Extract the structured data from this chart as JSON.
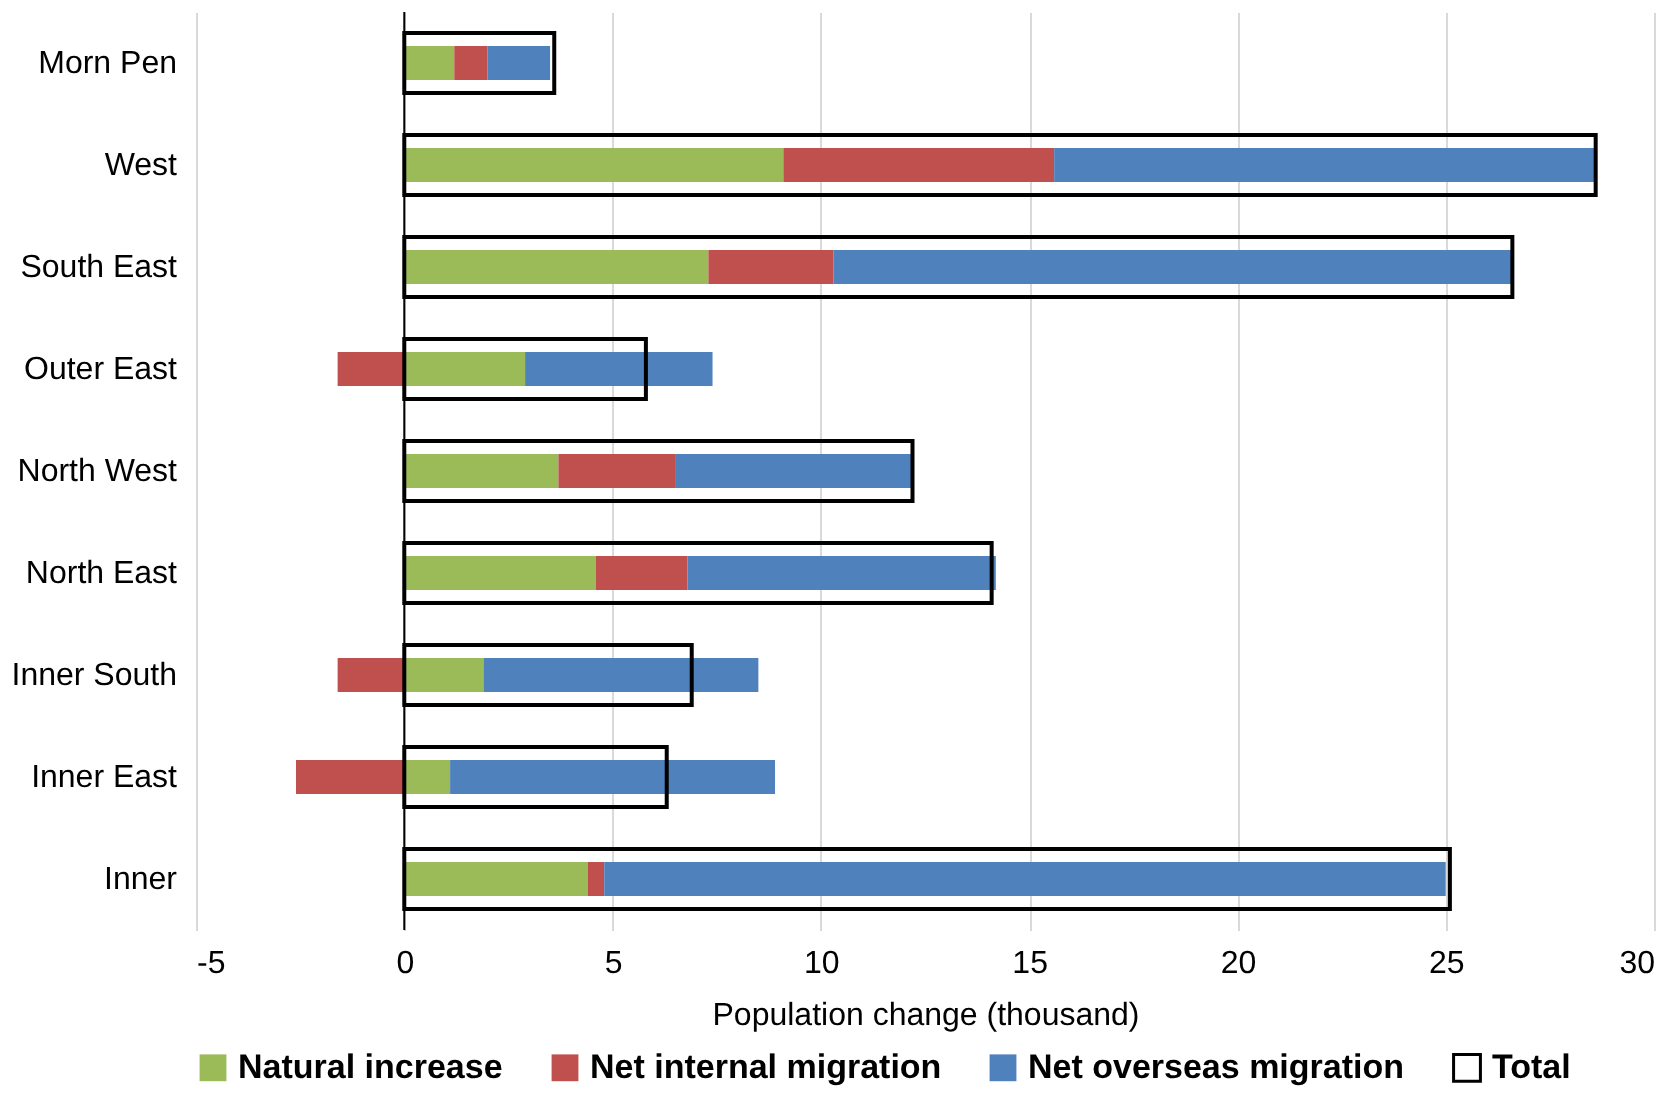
{
  "chart_data": {
    "type": "bar",
    "orientation": "horizontal",
    "xlabel": "Population change (thousand)",
    "categories": [
      "Morn Pen",
      "West",
      "South East",
      "Outer East",
      "North West",
      "North East",
      "Inner South",
      "Inner East",
      "Inner"
    ],
    "series": [
      {
        "name": "Natural increase",
        "color": "#9bbb59",
        "base": [
          0,
          0,
          0,
          0,
          0,
          0,
          0,
          0,
          0
        ],
        "values": [
          1.2,
          9.1,
          7.3,
          2.9,
          3.7,
          4.6,
          1.9,
          1.1,
          4.4
        ]
      },
      {
        "name": "Net internal migration",
        "color": "#c0504d",
        "base": [
          1.2,
          9.1,
          7.3,
          0,
          3.7,
          4.6,
          0,
          0,
          4.4
        ],
        "values": [
          0.8,
          6.5,
          3.0,
          -1.6,
          2.8,
          2.2,
          -1.6,
          -2.6,
          0.4
        ]
      },
      {
        "name": "Net overseas migration",
        "color": "#4f81bd",
        "base": [
          2.0,
          15.6,
          10.3,
          2.9,
          6.5,
          6.8,
          1.9,
          1.1,
          4.8
        ],
        "values": [
          1.5,
          13.0,
          16.3,
          4.5,
          5.7,
          7.4,
          6.6,
          7.8,
          20.2
        ]
      },
      {
        "name": "Total",
        "color": "#000000",
        "base": [
          0,
          0,
          0,
          0,
          0,
          0,
          0,
          0,
          0
        ],
        "values": [
          3.6,
          28.6,
          26.6,
          5.8,
          12.2,
          14.1,
          6.9,
          6.3,
          25.1
        ]
      }
    ],
    "xlim": [
      -5,
      30
    ],
    "xticks": [
      -5,
      0,
      5,
      10,
      15,
      20,
      25,
      30
    ],
    "grid": "x",
    "legend": "bottom"
  }
}
